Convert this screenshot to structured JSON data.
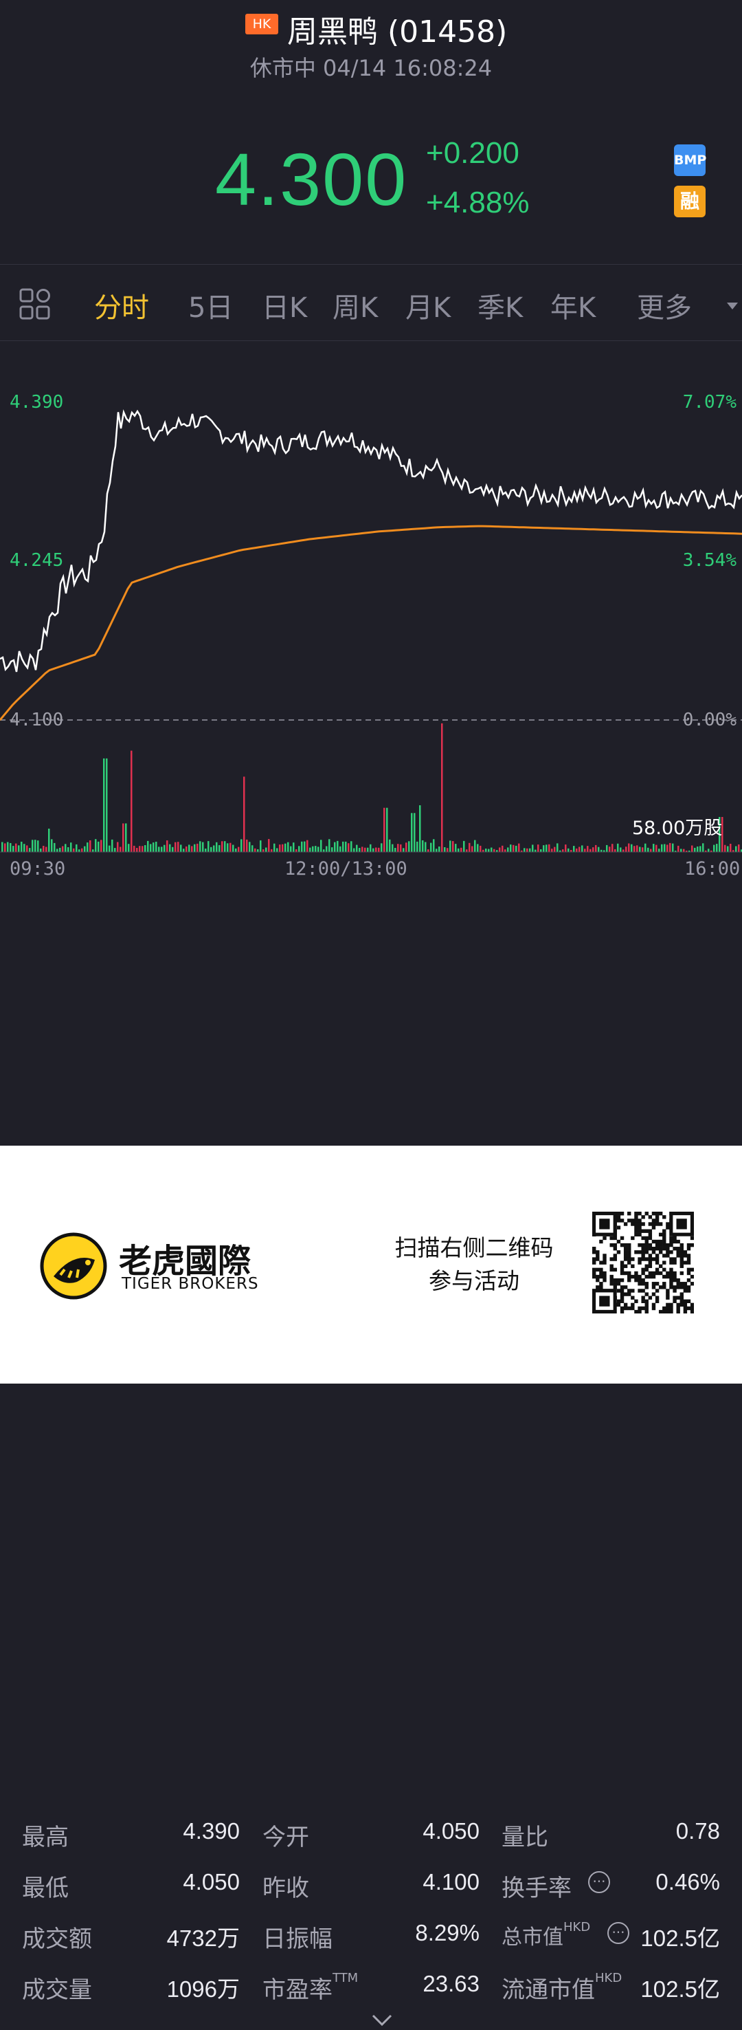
{
  "header": {
    "market_badge": "HK",
    "title": "周黑鸭 (01458)",
    "status": "休市中 04/14 16:08:24",
    "price": "4.300",
    "change": "+0.200",
    "change_pct": "+4.88%",
    "badge_bmp": "BMP",
    "badge_margin": "融"
  },
  "tabs": {
    "items": [
      "分时",
      "5日",
      "日K",
      "周K",
      "月K",
      "季K",
      "年K",
      "更多"
    ],
    "active": "分时"
  },
  "chart_data": {
    "type": "line",
    "title": "",
    "series": [],
    "y_left_ticks": [
      "4.390",
      "4.245",
      "4.100"
    ],
    "y_right_ticks": [
      "7.07%",
      "3.54%",
      "0.00%"
    ],
    "x_ticks": [
      "09:30",
      "12:00/13:00",
      "16:00"
    ],
    "ylim": [
      4.1,
      4.39
    ],
    "volume_label": "58.00万股",
    "colors": {
      "price": "#ffffff",
      "avg": "#f08c1e",
      "up": "#2fce78",
      "down": "#e0314f"
    }
  },
  "stats": [
    [
      {
        "label": "最高",
        "value": "4.390"
      },
      {
        "label": "今开",
        "value": "4.050"
      },
      {
        "label": "量比",
        "value": "0.78"
      }
    ],
    [
      {
        "label": "最低",
        "value": "4.050"
      },
      {
        "label": "昨收",
        "value": "4.100"
      },
      {
        "label": "换手率",
        "value": "0.46%"
      }
    ],
    [
      {
        "label": "成交额",
        "value": "4732万"
      },
      {
        "label": "日振幅",
        "value": "8.29%"
      },
      {
        "label": "总市值",
        "sup": "HKD",
        "value": "102.5亿"
      }
    ],
    [
      {
        "label": "成交量",
        "value": "1096万"
      },
      {
        "label": "市盈率",
        "sup": "TTM",
        "value": "23.63"
      },
      {
        "label": "流通市值",
        "sup": "HKD",
        "value": "102.5亿"
      }
    ]
  ],
  "footer": {
    "brand_cn": "老虎國際",
    "brand_en": "TIGER BROKERS",
    "promo_line1": "扫描右侧二维码",
    "promo_line2": "参与活动"
  }
}
